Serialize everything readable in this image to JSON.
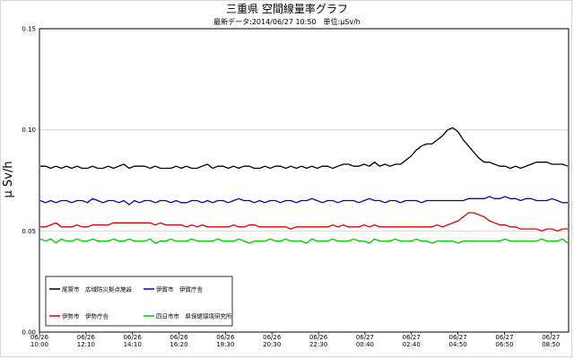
{
  "chart_data": {
    "type": "line",
    "title": "三重県 空間線量率グラフ",
    "subtitle": "最新データ:2014/06/27 10:50　単位:μSv/h",
    "ylabel": "μ Sv/h",
    "xlabel": "",
    "ylim": [
      0,
      0.15
    ],
    "y_ticks": [
      "0.00",
      "0.05",
      "0.10",
      "0.15"
    ],
    "y_tick_values": [
      0,
      0.05,
      0.1,
      0.15
    ],
    "grid": "horizontal",
    "legend_position": "bottom-left",
    "x_ticks": [
      {
        "date": "06/26",
        "time": "10:00"
      },
      {
        "date": "06/26",
        "time": "12:10"
      },
      {
        "date": "06/26",
        "time": "14:10"
      },
      {
        "date": "06/26",
        "time": "16:20"
      },
      {
        "date": "06/26",
        "time": "18:30"
      },
      {
        "date": "06/26",
        "time": "20:30"
      },
      {
        "date": "06/26",
        "time": "22:30"
      },
      {
        "date": "06/27",
        "time": "00:40"
      },
      {
        "date": "06/27",
        "time": "02:40"
      },
      {
        "date": "06/27",
        "time": "04:50"
      },
      {
        "date": "06/27",
        "time": "06:50"
      },
      {
        "date": "06/27",
        "time": "08:50"
      }
    ],
    "series": [
      {
        "name": "尾鷲市　広域防災拠点施設",
        "color": "#000000",
        "values": [
          0.082,
          0.082,
          0.081,
          0.082,
          0.081,
          0.082,
          0.081,
          0.082,
          0.081,
          0.081,
          0.082,
          0.081,
          0.081,
          0.082,
          0.081,
          0.082,
          0.083,
          0.081,
          0.082,
          0.082,
          0.082,
          0.081,
          0.082,
          0.081,
          0.081,
          0.081,
          0.082,
          0.081,
          0.082,
          0.081,
          0.081,
          0.082,
          0.083,
          0.081,
          0.082,
          0.082,
          0.081,
          0.082,
          0.081,
          0.082,
          0.082,
          0.081,
          0.081,
          0.082,
          0.081,
          0.082,
          0.082,
          0.081,
          0.082,
          0.081,
          0.082,
          0.081,
          0.082,
          0.081,
          0.082,
          0.082,
          0.081,
          0.082,
          0.083,
          0.083,
          0.082,
          0.082,
          0.083,
          0.082,
          0.084,
          0.082,
          0.083,
          0.082,
          0.083,
          0.083,
          0.085,
          0.087,
          0.09,
          0.092,
          0.093,
          0.093,
          0.095,
          0.097,
          0.1,
          0.101,
          0.099,
          0.095,
          0.092,
          0.089,
          0.086,
          0.084,
          0.084,
          0.083,
          0.082,
          0.082,
          0.081,
          0.082,
          0.081,
          0.082,
          0.083,
          0.084,
          0.084,
          0.084,
          0.083,
          0.083,
          0.083,
          0.082
        ]
      },
      {
        "name": "伊賀市　伊賀庁舎",
        "color": "#0000dd",
        "values": [
          0.065,
          0.064,
          0.065,
          0.064,
          0.065,
          0.065,
          0.064,
          0.065,
          0.065,
          0.064,
          0.066,
          0.065,
          0.064,
          0.065,
          0.065,
          0.064,
          0.065,
          0.063,
          0.065,
          0.064,
          0.065,
          0.065,
          0.064,
          0.065,
          0.065,
          0.064,
          0.065,
          0.064,
          0.064,
          0.065,
          0.065,
          0.064,
          0.065,
          0.064,
          0.065,
          0.065,
          0.064,
          0.065,
          0.066,
          0.065,
          0.065,
          0.064,
          0.065,
          0.064,
          0.065,
          0.065,
          0.064,
          0.065,
          0.065,
          0.064,
          0.065,
          0.065,
          0.066,
          0.065,
          0.064,
          0.065,
          0.065,
          0.064,
          0.065,
          0.065,
          0.065,
          0.064,
          0.065,
          0.066,
          0.065,
          0.065,
          0.064,
          0.065,
          0.065,
          0.064,
          0.065,
          0.065,
          0.065,
          0.064,
          0.065,
          0.065,
          0.065,
          0.065,
          0.065,
          0.065,
          0.065,
          0.065,
          0.066,
          0.066,
          0.066,
          0.066,
          0.067,
          0.066,
          0.066,
          0.067,
          0.066,
          0.066,
          0.065,
          0.066,
          0.066,
          0.065,
          0.065,
          0.065,
          0.066,
          0.065,
          0.064,
          0.064
        ]
      },
      {
        "name": "伊勢市　伊勢庁舎",
        "color": "#dd0000",
        "values": [
          0.052,
          0.052,
          0.053,
          0.054,
          0.052,
          0.052,
          0.052,
          0.053,
          0.052,
          0.052,
          0.053,
          0.053,
          0.053,
          0.053,
          0.054,
          0.054,
          0.054,
          0.054,
          0.054,
          0.054,
          0.054,
          0.054,
          0.053,
          0.054,
          0.053,
          0.053,
          0.053,
          0.053,
          0.052,
          0.053,
          0.052,
          0.053,
          0.052,
          0.052,
          0.052,
          0.052,
          0.052,
          0.053,
          0.052,
          0.052,
          0.053,
          0.053,
          0.052,
          0.052,
          0.052,
          0.052,
          0.052,
          0.052,
          0.051,
          0.052,
          0.052,
          0.052,
          0.052,
          0.052,
          0.052,
          0.052,
          0.053,
          0.052,
          0.053,
          0.052,
          0.052,
          0.052,
          0.053,
          0.052,
          0.053,
          0.052,
          0.052,
          0.052,
          0.052,
          0.052,
          0.052,
          0.052,
          0.052,
          0.052,
          0.052,
          0.052,
          0.053,
          0.052,
          0.053,
          0.054,
          0.055,
          0.057,
          0.059,
          0.059,
          0.058,
          0.057,
          0.055,
          0.054,
          0.053,
          0.053,
          0.052,
          0.052,
          0.051,
          0.051,
          0.051,
          0.051,
          0.05,
          0.051,
          0.051,
          0.05,
          0.051,
          0.051
        ]
      },
      {
        "name": "四日市市　県保健環境研究所",
        "color": "#00cc00",
        "values": [
          0.046,
          0.045,
          0.046,
          0.044,
          0.046,
          0.045,
          0.045,
          0.046,
          0.045,
          0.045,
          0.046,
          0.045,
          0.045,
          0.045,
          0.046,
          0.045,
          0.045,
          0.046,
          0.045,
          0.045,
          0.045,
          0.046,
          0.044,
          0.045,
          0.045,
          0.046,
          0.045,
          0.045,
          0.045,
          0.046,
          0.045,
          0.045,
          0.045,
          0.045,
          0.046,
          0.045,
          0.045,
          0.045,
          0.046,
          0.045,
          0.044,
          0.045,
          0.045,
          0.045,
          0.046,
          0.045,
          0.045,
          0.046,
          0.045,
          0.045,
          0.045,
          0.044,
          0.046,
          0.045,
          0.045,
          0.045,
          0.046,
          0.045,
          0.045,
          0.045,
          0.046,
          0.045,
          0.045,
          0.044,
          0.046,
          0.045,
          0.045,
          0.045,
          0.046,
          0.045,
          0.045,
          0.045,
          0.046,
          0.045,
          0.045,
          0.044,
          0.045,
          0.045,
          0.045,
          0.045,
          0.044,
          0.045,
          0.045,
          0.045,
          0.045,
          0.045,
          0.045,
          0.045,
          0.045,
          0.046,
          0.045,
          0.045,
          0.045,
          0.045,
          0.045,
          0.045,
          0.046,
          0.045,
          0.045,
          0.045,
          0.046,
          0.044
        ]
      }
    ]
  }
}
